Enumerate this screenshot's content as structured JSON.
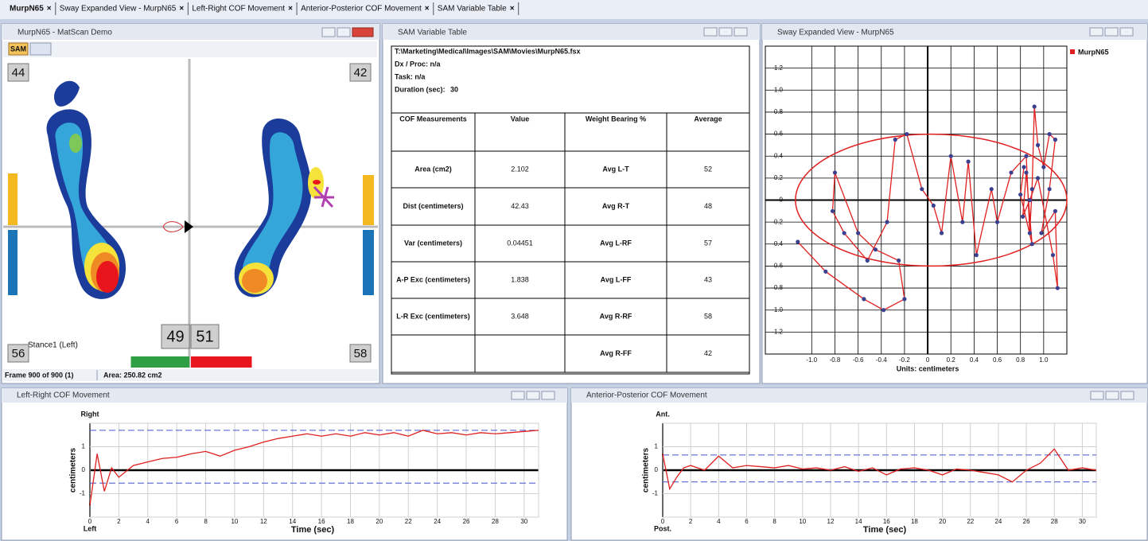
{
  "tabs": [
    "MurpN65",
    "Sway Expanded View - MurpN65",
    "Left-Right COF Movement",
    "Anterior-Posterior COF Movement",
    "SAM Variable Table"
  ],
  "matscan": {
    "title": "MurpN65 - MatScan Demo",
    "toolbar_button": "SAM",
    "corner_labels": {
      "top_left": 44,
      "top_right": 42,
      "bottom_left": 56,
      "bottom_right": 58
    },
    "stance": "Stance1 (Left)",
    "weight_left": 49,
    "weight_right": 51,
    "status_frame": "Frame 900 of 900 (1)",
    "status_area": "Area: 250.82 cm2"
  },
  "variable_table": {
    "title": "SAM Variable Table",
    "file": "T:\\Marketing\\Medical\\Images\\SAM\\Movies\\MurpN65.fsx",
    "dx_proc": "Dx / Proc: n/a",
    "task": "Task: n/a",
    "duration_label": "Duration (sec):",
    "duration": 30,
    "columns": [
      "COF Measurements",
      "Value",
      "Weight Bearing %",
      "Average"
    ],
    "rows": [
      {
        "measurement": "Area (cm2)",
        "value": 2.102,
        "weight": "Avg L-T",
        "average": 52
      },
      {
        "measurement": "Dist (centimeters)",
        "value": 42.43,
        "weight": "Avg R-T",
        "average": 48
      },
      {
        "measurement": "Var (centimeters)",
        "value": 0.04451,
        "weight": "Avg L-RF",
        "average": 57
      },
      {
        "measurement": "A-P Exc (centimeters)",
        "value": 1.838,
        "weight": "Avg L-FF",
        "average": 43
      },
      {
        "measurement": "L-R Exc (centimeters)",
        "value": 3.648,
        "weight": "Avg R-RF",
        "average": 58
      },
      {
        "weight": "Avg R-FF",
        "average": 42
      }
    ]
  },
  "chart_data": [
    {
      "type": "scatter",
      "window_title": "Sway Expanded View - MurpN65",
      "xlabel": "Units: centimeters",
      "series": [
        {
          "name": "MurpN65",
          "color": "#e02020",
          "marker_color": "#3a3f8f",
          "x": [
            -1.12,
            -0.88,
            -0.55,
            -0.38,
            -0.2,
            -0.25,
            -0.45,
            -0.6,
            -0.8,
            -0.82,
            -0.72,
            -0.52,
            -0.35,
            -0.28,
            -0.18,
            -0.05,
            0.05,
            0.12,
            0.2,
            0.3,
            0.35,
            0.42,
            0.55,
            0.6,
            0.72,
            0.85,
            0.88,
            0.9,
            0.92,
            0.95,
            1.0,
            1.05,
            1.1,
            1.05,
            0.98,
            1.1,
            1.12,
            1.08,
            0.95,
            0.88,
            0.82,
            0.85,
            0.9,
            0.8,
            0.83
          ],
          "values": [
            -0.38,
            -0.65,
            -0.9,
            -1.0,
            -0.9,
            -0.55,
            -0.45,
            -0.3,
            0.25,
            -0.1,
            -0.3,
            -0.55,
            -0.2,
            0.55,
            0.6,
            0.1,
            -0.05,
            -0.3,
            0.4,
            -0.2,
            0.35,
            -0.5,
            0.1,
            -0.2,
            0.25,
            0.4,
            -0.3,
            0.1,
            0.85,
            0.5,
            0.3,
            0.6,
            0.55,
            0.1,
            -0.3,
            -0.1,
            -0.8,
            -0.5,
            0.2,
            0.0,
            -0.15,
            0.25,
            -0.4,
            0.05,
            0.3
          ]
        }
      ],
      "ellipse": {
        "cx": 0.03,
        "cy": 0.0,
        "rx": 1.17,
        "ry": 0.6
      },
      "xlim": [
        -1.4,
        1.2
      ],
      "ylim": [
        -1.4,
        1.4
      ],
      "xticks": [
        {
          "value": -1,
          "label": "-1.0"
        },
        -0.8,
        -0.6,
        -0.4,
        -0.2,
        0,
        0.2,
        0.4,
        0.6,
        0.8,
        {
          "value": 1,
          "label": "1.0"
        }
      ],
      "yticks": [
        1.2,
        {
          "value": 1,
          "label": "1.0"
        },
        0.8,
        0.6,
        0.4,
        0.2,
        0,
        -0.2,
        -0.4,
        -0.6,
        -0.8,
        {
          "value": -1,
          "label": "-1.0"
        },
        -1.2
      ],
      "grid": true,
      "legend": "top-right"
    },
    {
      "type": "line",
      "window_title": "Left-Right COF Movement",
      "top_label": "Right",
      "bottom_label": "Left",
      "ylabel": "centimeters",
      "xlabel": "Time (sec)",
      "x": [
        0,
        0.5,
        1,
        1.5,
        2,
        3,
        4,
        5,
        6,
        7,
        8,
        9,
        10,
        11,
        12,
        13,
        14,
        15,
        16,
        17,
        18,
        19,
        20,
        21,
        22,
        23,
        24,
        25,
        26,
        27,
        28,
        29,
        30,
        31
      ],
      "series": [
        {
          "color": "#e02020",
          "values": [
            -1.5,
            0.7,
            -0.9,
            0.1,
            -0.3,
            0.2,
            0.35,
            0.5,
            0.55,
            0.7,
            0.8,
            0.6,
            0.85,
            1.0,
            1.2,
            1.35,
            1.45,
            1.55,
            1.45,
            1.55,
            1.45,
            1.6,
            1.5,
            1.6,
            1.45,
            1.7,
            1.55,
            1.6,
            1.5,
            1.6,
            1.55,
            1.6,
            1.65,
            1.7
          ]
        }
      ],
      "reference_lines": [
        1.7,
        -0.55
      ],
      "reference_color": "#4455cc",
      "xlim": [
        0,
        31
      ],
      "ylim": [
        -2,
        2
      ],
      "xticks": [
        0,
        2,
        4,
        6,
        8,
        10,
        12,
        14,
        16,
        18,
        20,
        22,
        24,
        26,
        28,
        30
      ],
      "yticks": [
        1,
        0,
        -1
      ],
      "grid": true
    },
    {
      "type": "line",
      "window_title": "Anterior-Posterior COF Movement",
      "top_label": "Ant.",
      "bottom_label": "Post.",
      "ylabel": "centimeters",
      "xlabel": "Time (sec)",
      "x": [
        0,
        0.5,
        1,
        1.5,
        2,
        3,
        4,
        5,
        6,
        7,
        8,
        9,
        10,
        11,
        12,
        13,
        14,
        15,
        16,
        17,
        18,
        19,
        20,
        21,
        22,
        23,
        24,
        25,
        26,
        27,
        28,
        29,
        30,
        31
      ],
      "series": [
        {
          "color": "#e02020",
          "values": [
            0.7,
            -0.8,
            -0.3,
            0.1,
            0.2,
            0.0,
            0.6,
            0.1,
            0.2,
            0.15,
            0.1,
            0.2,
            0.05,
            0.1,
            0.0,
            0.15,
            -0.05,
            0.1,
            -0.2,
            0.05,
            0.1,
            0.0,
            -0.2,
            0.05,
            0.0,
            -0.1,
            -0.2,
            -0.5,
            0.0,
            0.3,
            0.9,
            0.0,
            0.1,
            0.0
          ]
        }
      ],
      "reference_lines": [
        0.65,
        -0.5
      ],
      "reference_color": "#4455cc",
      "xlim": [
        0,
        31
      ],
      "ylim": [
        -2,
        2
      ],
      "xticks": [
        0,
        2,
        4,
        6,
        8,
        10,
        12,
        14,
        16,
        18,
        20,
        22,
        24,
        26,
        28,
        30
      ],
      "yticks": [
        1,
        0,
        -1
      ],
      "grid": true
    }
  ]
}
